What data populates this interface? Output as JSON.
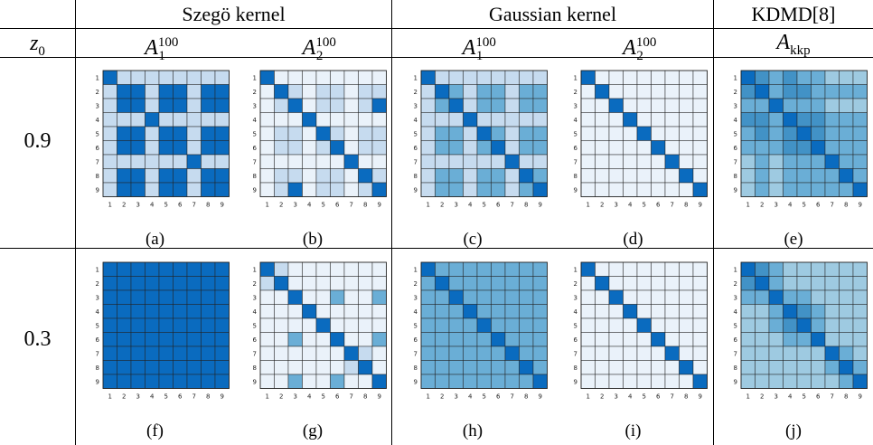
{
  "header": {
    "groups": [
      "Szegö kernel",
      "Gaussian kernel",
      "KDMD[8]"
    ],
    "row_header": {
      "base": "z",
      "sub": "0"
    },
    "columns": [
      {
        "base": "A",
        "sub": "1",
        "sup": "100"
      },
      {
        "base": "A",
        "sub": "2",
        "sup": "100"
      },
      {
        "base": "A",
        "sub": "1",
        "sup": "100"
      },
      {
        "base": "A",
        "sub": "2",
        "sup": "100"
      },
      {
        "base": "A",
        "sub": "kkp",
        "sup": ""
      }
    ]
  },
  "rows": [
    {
      "label": "0.9",
      "captions": [
        "(a)",
        "(b)",
        "(c)",
        "(d)",
        "(e)"
      ]
    },
    {
      "label": "0.3",
      "captions": [
        "(f)",
        "(g)",
        "(h)",
        "(i)",
        "(j)"
      ]
    }
  ],
  "tick_labels": [
    "1",
    "2",
    "3",
    "4",
    "5",
    "6",
    "7",
    "8",
    "9"
  ],
  "colors": {
    "palette": [
      "#ffffff",
      "#eaf2fa",
      "#c6dbef",
      "#9ecae1",
      "#6aaed6",
      "#4292c6",
      "#0a6bbf"
    ]
  },
  "chart_data": [
    {
      "type": "heatmap",
      "panel": "(a)",
      "x": [
        "1",
        "2",
        "3",
        "4",
        "5",
        "6",
        "7",
        "8",
        "9"
      ],
      "y": [
        "1",
        "2",
        "3",
        "4",
        "5",
        "6",
        "7",
        "8",
        "9"
      ],
      "values": [
        [
          6,
          2,
          2,
          2,
          2,
          2,
          2,
          2,
          2
        ],
        [
          2,
          6,
          6,
          2,
          6,
          6,
          2,
          6,
          6
        ],
        [
          2,
          6,
          6,
          2,
          6,
          6,
          2,
          6,
          6
        ],
        [
          2,
          2,
          2,
          6,
          2,
          2,
          2,
          2,
          2
        ],
        [
          2,
          6,
          6,
          2,
          6,
          6,
          2,
          6,
          6
        ],
        [
          2,
          6,
          6,
          2,
          6,
          6,
          2,
          6,
          6
        ],
        [
          2,
          2,
          2,
          2,
          2,
          2,
          6,
          2,
          2
        ],
        [
          2,
          6,
          6,
          2,
          6,
          6,
          2,
          6,
          6
        ],
        [
          2,
          6,
          6,
          2,
          6,
          6,
          2,
          6,
          6
        ]
      ]
    },
    {
      "type": "heatmap",
      "panel": "(b)",
      "x": [
        "1",
        "2",
        "3",
        "4",
        "5",
        "6",
        "7",
        "8",
        "9"
      ],
      "y": [
        "1",
        "2",
        "3",
        "4",
        "5",
        "6",
        "7",
        "8",
        "9"
      ],
      "values": [
        [
          6,
          1,
          1,
          1,
          1,
          1,
          1,
          1,
          1
        ],
        [
          1,
          6,
          2,
          1,
          2,
          2,
          1,
          2,
          2
        ],
        [
          1,
          2,
          6,
          1,
          2,
          2,
          1,
          2,
          6
        ],
        [
          1,
          1,
          1,
          6,
          1,
          1,
          1,
          1,
          1
        ],
        [
          1,
          2,
          2,
          1,
          6,
          2,
          1,
          2,
          2
        ],
        [
          1,
          2,
          2,
          1,
          2,
          6,
          1,
          2,
          2
        ],
        [
          1,
          1,
          1,
          1,
          1,
          1,
          6,
          1,
          1
        ],
        [
          1,
          2,
          2,
          1,
          2,
          2,
          1,
          6,
          2
        ],
        [
          1,
          2,
          6,
          1,
          2,
          2,
          1,
          2,
          6
        ]
      ]
    },
    {
      "type": "heatmap",
      "panel": "(c)",
      "x": [
        "1",
        "2",
        "3",
        "4",
        "5",
        "6",
        "7",
        "8",
        "9"
      ],
      "y": [
        "1",
        "2",
        "3",
        "4",
        "5",
        "6",
        "7",
        "8",
        "9"
      ],
      "values": [
        [
          6,
          2,
          2,
          2,
          2,
          2,
          2,
          2,
          2
        ],
        [
          2,
          6,
          4,
          2,
          4,
          4,
          2,
          4,
          4
        ],
        [
          2,
          4,
          6,
          2,
          4,
          4,
          2,
          4,
          4
        ],
        [
          2,
          2,
          2,
          6,
          2,
          2,
          2,
          2,
          2
        ],
        [
          2,
          4,
          4,
          2,
          6,
          4,
          2,
          4,
          4
        ],
        [
          2,
          4,
          4,
          2,
          4,
          6,
          2,
          4,
          4
        ],
        [
          2,
          2,
          2,
          2,
          2,
          2,
          6,
          2,
          2
        ],
        [
          2,
          4,
          4,
          2,
          4,
          4,
          2,
          6,
          4
        ],
        [
          2,
          4,
          4,
          2,
          4,
          4,
          2,
          4,
          6
        ]
      ]
    },
    {
      "type": "heatmap",
      "panel": "(d)",
      "x": [
        "1",
        "2",
        "3",
        "4",
        "5",
        "6",
        "7",
        "8",
        "9"
      ],
      "y": [
        "1",
        "2",
        "3",
        "4",
        "5",
        "6",
        "7",
        "8",
        "9"
      ],
      "values": [
        [
          6,
          1,
          1,
          1,
          1,
          1,
          1,
          1,
          1
        ],
        [
          1,
          6,
          1,
          1,
          1,
          1,
          1,
          1,
          1
        ],
        [
          1,
          1,
          6,
          1,
          1,
          1,
          1,
          1,
          1
        ],
        [
          1,
          1,
          1,
          6,
          1,
          1,
          1,
          1,
          1
        ],
        [
          1,
          1,
          1,
          1,
          6,
          1,
          1,
          1,
          1
        ],
        [
          1,
          1,
          1,
          1,
          1,
          6,
          1,
          1,
          1
        ],
        [
          1,
          1,
          1,
          1,
          1,
          1,
          6,
          1,
          1
        ],
        [
          1,
          1,
          1,
          1,
          1,
          1,
          1,
          6,
          1
        ],
        [
          1,
          1,
          1,
          1,
          1,
          1,
          1,
          1,
          6
        ]
      ]
    },
    {
      "type": "heatmap",
      "panel": "(e)",
      "x": [
        "1",
        "2",
        "3",
        "4",
        "5",
        "6",
        "7",
        "8",
        "9"
      ],
      "y": [
        "1",
        "2",
        "3",
        "4",
        "5",
        "6",
        "7",
        "8",
        "9"
      ],
      "values": [
        [
          6,
          5,
          4,
          5,
          4,
          4,
          3,
          3,
          3
        ],
        [
          5,
          6,
          4,
          5,
          5,
          4,
          4,
          4,
          4
        ],
        [
          4,
          4,
          6,
          4,
          4,
          4,
          3,
          3,
          3
        ],
        [
          5,
          5,
          4,
          6,
          5,
          5,
          4,
          4,
          4
        ],
        [
          4,
          5,
          4,
          5,
          6,
          5,
          4,
          4,
          4
        ],
        [
          4,
          4,
          4,
          5,
          5,
          6,
          4,
          4,
          4
        ],
        [
          3,
          4,
          3,
          4,
          4,
          4,
          6,
          4,
          4
        ],
        [
          3,
          4,
          3,
          4,
          4,
          4,
          4,
          6,
          4
        ],
        [
          3,
          4,
          3,
          4,
          4,
          4,
          4,
          4,
          6
        ]
      ]
    },
    {
      "type": "heatmap",
      "panel": "(f)",
      "x": [
        "1",
        "2",
        "3",
        "4",
        "5",
        "6",
        "7",
        "8",
        "9"
      ],
      "y": [
        "1",
        "2",
        "3",
        "4",
        "5",
        "6",
        "7",
        "8",
        "9"
      ],
      "values": [
        [
          6,
          6,
          6,
          6,
          6,
          6,
          6,
          6,
          6
        ],
        [
          6,
          6,
          6,
          6,
          6,
          6,
          6,
          6,
          6
        ],
        [
          6,
          6,
          6,
          6,
          6,
          6,
          6,
          6,
          6
        ],
        [
          6,
          6,
          6,
          6,
          6,
          6,
          6,
          6,
          6
        ],
        [
          6,
          6,
          6,
          6,
          6,
          6,
          6,
          6,
          6
        ],
        [
          6,
          6,
          6,
          6,
          6,
          6,
          6,
          6,
          6
        ],
        [
          6,
          6,
          6,
          6,
          6,
          6,
          6,
          6,
          6
        ],
        [
          6,
          6,
          6,
          6,
          6,
          6,
          6,
          6,
          6
        ],
        [
          6,
          6,
          6,
          6,
          6,
          6,
          6,
          6,
          6
        ]
      ]
    },
    {
      "type": "heatmap",
      "panel": "(g)",
      "x": [
        "1",
        "2",
        "3",
        "4",
        "5",
        "6",
        "7",
        "8",
        "9"
      ],
      "y": [
        "1",
        "2",
        "3",
        "4",
        "5",
        "6",
        "7",
        "8",
        "9"
      ],
      "values": [
        [
          6,
          2,
          1,
          1,
          1,
          1,
          1,
          1,
          1
        ],
        [
          2,
          6,
          1,
          1,
          1,
          1,
          1,
          1,
          1
        ],
        [
          1,
          1,
          6,
          1,
          1,
          4,
          1,
          1,
          4
        ],
        [
          1,
          1,
          1,
          6,
          1,
          1,
          1,
          1,
          1
        ],
        [
          1,
          1,
          1,
          1,
          6,
          1,
          1,
          1,
          1
        ],
        [
          1,
          1,
          4,
          1,
          1,
          6,
          1,
          1,
          4
        ],
        [
          1,
          1,
          1,
          1,
          1,
          1,
          6,
          2,
          1
        ],
        [
          1,
          1,
          1,
          1,
          1,
          1,
          2,
          6,
          1
        ],
        [
          1,
          1,
          4,
          1,
          1,
          4,
          1,
          1,
          6
        ]
      ]
    },
    {
      "type": "heatmap",
      "panel": "(h)",
      "x": [
        "1",
        "2",
        "3",
        "4",
        "5",
        "6",
        "7",
        "8",
        "9"
      ],
      "y": [
        "1",
        "2",
        "3",
        "4",
        "5",
        "6",
        "7",
        "8",
        "9"
      ],
      "values": [
        [
          6,
          4,
          4,
          4,
          4,
          4,
          4,
          4,
          4
        ],
        [
          4,
          6,
          4,
          4,
          4,
          4,
          4,
          4,
          4
        ],
        [
          4,
          4,
          6,
          4,
          4,
          4,
          4,
          4,
          4
        ],
        [
          4,
          4,
          4,
          6,
          4,
          4,
          4,
          4,
          4
        ],
        [
          4,
          4,
          4,
          4,
          6,
          4,
          4,
          4,
          4
        ],
        [
          4,
          4,
          4,
          4,
          4,
          6,
          4,
          4,
          4
        ],
        [
          4,
          4,
          4,
          4,
          4,
          4,
          6,
          4,
          4
        ],
        [
          4,
          4,
          4,
          4,
          4,
          4,
          4,
          6,
          4
        ],
        [
          4,
          4,
          4,
          4,
          4,
          4,
          4,
          4,
          6
        ]
      ]
    },
    {
      "type": "heatmap",
      "panel": "(i)",
      "x": [
        "1",
        "2",
        "3",
        "4",
        "5",
        "6",
        "7",
        "8",
        "9"
      ],
      "y": [
        "1",
        "2",
        "3",
        "4",
        "5",
        "6",
        "7",
        "8",
        "9"
      ],
      "values": [
        [
          6,
          1,
          1,
          1,
          1,
          1,
          1,
          1,
          1
        ],
        [
          1,
          6,
          1,
          1,
          1,
          1,
          1,
          1,
          1
        ],
        [
          1,
          1,
          6,
          1,
          1,
          1,
          1,
          1,
          1
        ],
        [
          1,
          1,
          1,
          6,
          1,
          1,
          1,
          1,
          1
        ],
        [
          1,
          1,
          1,
          1,
          6,
          1,
          1,
          1,
          1
        ],
        [
          1,
          1,
          1,
          1,
          1,
          6,
          1,
          1,
          1
        ],
        [
          1,
          1,
          1,
          1,
          1,
          1,
          6,
          1,
          1
        ],
        [
          1,
          1,
          1,
          1,
          1,
          1,
          1,
          6,
          1
        ],
        [
          1,
          1,
          1,
          1,
          1,
          1,
          1,
          1,
          6
        ]
      ]
    },
    {
      "type": "heatmap",
      "panel": "(j)",
      "x": [
        "1",
        "2",
        "3",
        "4",
        "5",
        "6",
        "7",
        "8",
        "9"
      ],
      "y": [
        "1",
        "2",
        "3",
        "4",
        "5",
        "6",
        "7",
        "8",
        "9"
      ],
      "values": [
        [
          6,
          5,
          4,
          3,
          3,
          3,
          3,
          3,
          3
        ],
        [
          5,
          6,
          4,
          3,
          3,
          3,
          3,
          3,
          3
        ],
        [
          4,
          4,
          6,
          4,
          4,
          3,
          3,
          3,
          3
        ],
        [
          3,
          3,
          4,
          6,
          5,
          4,
          3,
          3,
          3
        ],
        [
          3,
          3,
          4,
          5,
          6,
          4,
          3,
          3,
          3
        ],
        [
          3,
          3,
          3,
          4,
          4,
          6,
          3,
          3,
          3
        ],
        [
          3,
          3,
          3,
          3,
          3,
          3,
          6,
          4,
          3
        ],
        [
          3,
          3,
          3,
          3,
          3,
          3,
          4,
          6,
          4
        ],
        [
          3,
          3,
          3,
          3,
          3,
          3,
          3,
          4,
          6
        ]
      ]
    }
  ]
}
